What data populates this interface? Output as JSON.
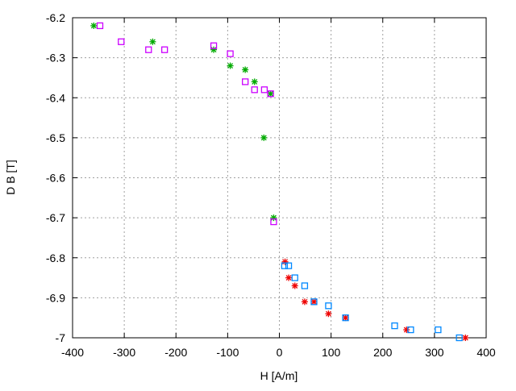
{
  "chart_data": {
    "type": "scatter",
    "title": "",
    "xlabel": "H [A/m]",
    "ylabel": "D B [T]",
    "xlim": [
      -400,
      400
    ],
    "ylim": [
      -7,
      -6.2
    ],
    "xticks": [
      "-400",
      "-300",
      "-200",
      "-100",
      "0",
      "100",
      "200",
      "300",
      "400"
    ],
    "yticks": [
      "-6.2",
      "-6.3",
      "-6.4",
      "-6.5",
      "-6.6",
      "-6.7",
      "-6.8",
      "-6.9",
      "-7"
    ],
    "grid": true,
    "series": [
      {
        "marker": "star",
        "color": "#00aa00",
        "x": [
          -359,
          -245,
          -127,
          -95,
          -66,
          -48,
          -17,
          -30,
          -11
        ],
        "y": [
          -6.22,
          -6.26,
          -6.28,
          -6.32,
          -6.33,
          -6.36,
          -6.39,
          -6.5,
          -6.7
        ]
      },
      {
        "marker": "square",
        "color": "#cc00ff",
        "x": [
          -347,
          -306,
          -253,
          -222,
          -127,
          -95,
          -66,
          -48,
          -29,
          -17,
          -11
        ],
        "y": [
          -6.22,
          -6.26,
          -6.28,
          -6.28,
          -6.27,
          -6.29,
          -6.36,
          -6.38,
          -6.38,
          -6.39,
          -6.71
        ]
      },
      {
        "marker": "star",
        "color": "#ee0000",
        "x": [
          11,
          18,
          30,
          49,
          67,
          95,
          128,
          246,
          360
        ],
        "y": [
          -6.81,
          -6.85,
          -6.87,
          -6.91,
          -6.91,
          -6.94,
          -6.95,
          -6.98,
          -7.0
        ]
      },
      {
        "marker": "square",
        "color": "#0088ff",
        "x": [
          10,
          18,
          30,
          49,
          67,
          95,
          128,
          223,
          254,
          307,
          348
        ],
        "y": [
          -6.82,
          -6.82,
          -6.85,
          -6.87,
          -6.91,
          -6.92,
          -6.95,
          -6.97,
          -6.98,
          -6.98,
          -7.0
        ]
      }
    ]
  }
}
